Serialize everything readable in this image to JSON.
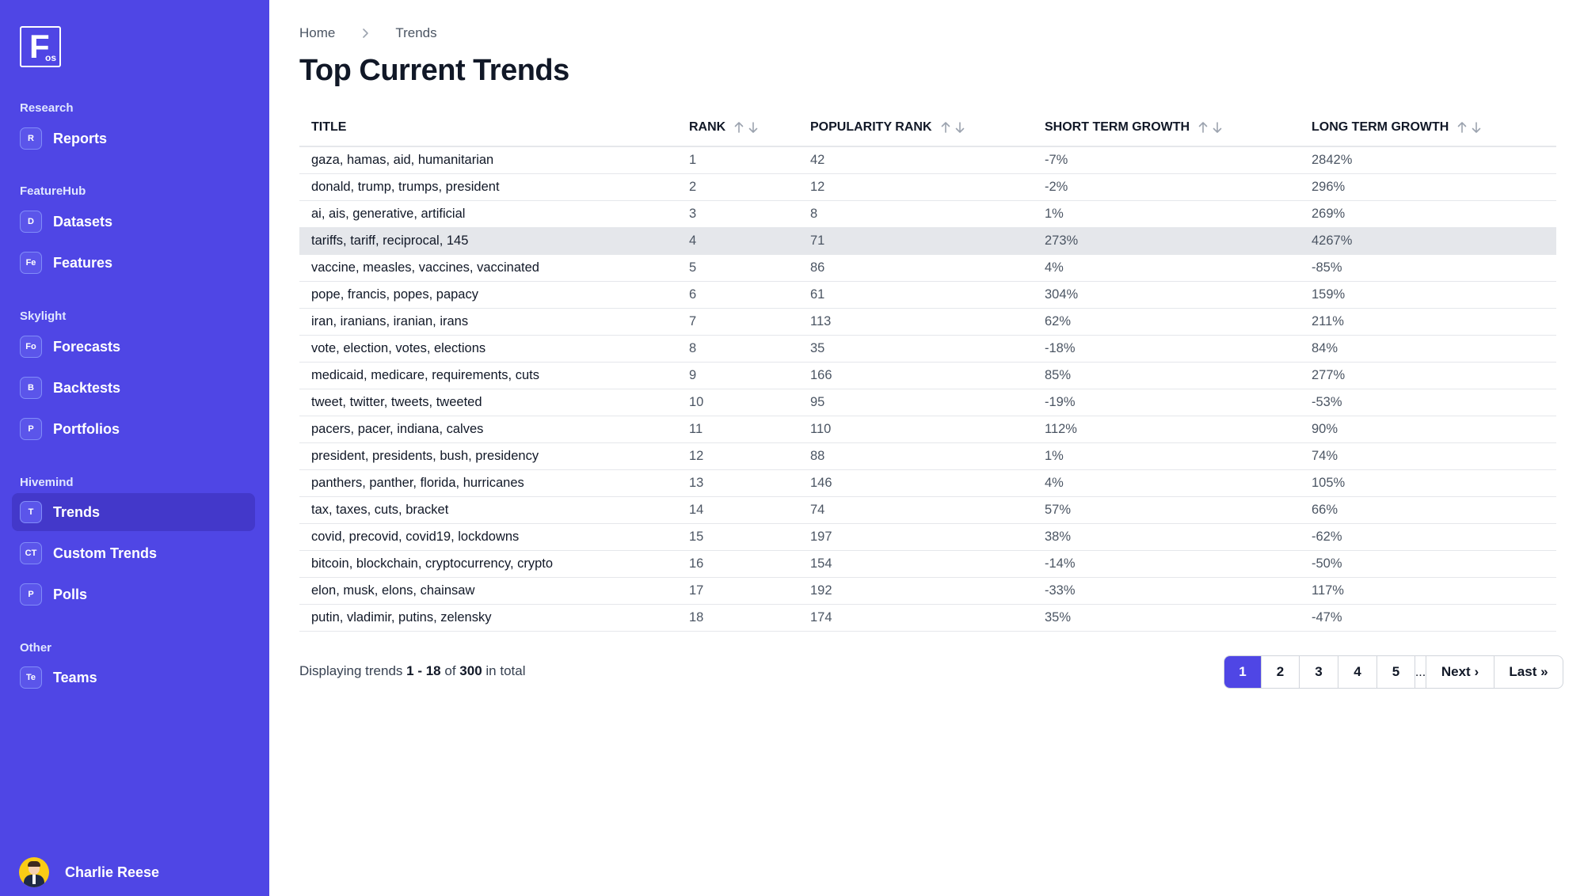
{
  "logo": {
    "letter": "F",
    "sub": "os"
  },
  "sidebar": {
    "sections": [
      {
        "title": "Research",
        "items": [
          {
            "badge": "R",
            "label": "Reports"
          }
        ]
      },
      {
        "title": "FeatureHub",
        "items": [
          {
            "badge": "D",
            "label": "Datasets"
          },
          {
            "badge": "Fe",
            "label": "Features"
          }
        ]
      },
      {
        "title": "Skylight",
        "items": [
          {
            "badge": "Fo",
            "label": "Forecasts"
          },
          {
            "badge": "B",
            "label": "Backtests"
          },
          {
            "badge": "P",
            "label": "Portfolios"
          }
        ]
      },
      {
        "title": "Hivemind",
        "items": [
          {
            "badge": "T",
            "label": "Trends",
            "active": true
          },
          {
            "badge": "CT",
            "label": "Custom Trends"
          },
          {
            "badge": "P",
            "label": "Polls"
          }
        ]
      },
      {
        "title": "Other",
        "items": [
          {
            "badge": "Te",
            "label": "Teams"
          }
        ]
      }
    ],
    "user": {
      "name": "Charlie Reese"
    }
  },
  "breadcrumb": [
    "Home",
    "Trends"
  ],
  "page": {
    "title": "Top Current Trends"
  },
  "table": {
    "columns": [
      "TITLE",
      "RANK",
      "POPULARITY RANK",
      "SHORT TERM GROWTH",
      "LONG TERM GROWTH"
    ],
    "rows": [
      [
        "gaza, hamas, aid, humanitarian",
        "1",
        "42",
        "-7%",
        "2842%"
      ],
      [
        "donald, trump, trumps, president",
        "2",
        "12",
        "-2%",
        "296%"
      ],
      [
        "ai, ais, generative, artificial",
        "3",
        "8",
        "1%",
        "269%"
      ],
      [
        "tariffs, tariff, reciprocal, 145",
        "4",
        "71",
        "273%",
        "4267%"
      ],
      [
        "vaccine, measles, vaccines, vaccinated",
        "5",
        "86",
        "4%",
        "-85%"
      ],
      [
        "pope, francis, popes, papacy",
        "6",
        "61",
        "304%",
        "159%"
      ],
      [
        "iran, iranians, iranian, irans",
        "7",
        "113",
        "62%",
        "211%"
      ],
      [
        "vote, election, votes, elections",
        "8",
        "35",
        "-18%",
        "84%"
      ],
      [
        "medicaid, medicare, requirements, cuts",
        "9",
        "166",
        "85%",
        "277%"
      ],
      [
        "tweet, twitter, tweets, tweeted",
        "10",
        "95",
        "-19%",
        "-53%"
      ],
      [
        "pacers, pacer, indiana, calves",
        "11",
        "110",
        "112%",
        "90%"
      ],
      [
        "president, presidents, bush, presidency",
        "12",
        "88",
        "1%",
        "74%"
      ],
      [
        "panthers, panther, florida, hurricanes",
        "13",
        "146",
        "4%",
        "105%"
      ],
      [
        "tax, taxes, cuts, bracket",
        "14",
        "74",
        "57%",
        "66%"
      ],
      [
        "covid, precovid, covid19, lockdowns",
        "15",
        "197",
        "38%",
        "-62%"
      ],
      [
        "bitcoin, blockchain, cryptocurrency, crypto",
        "16",
        "154",
        "-14%",
        "-50%"
      ],
      [
        "elon, musk, elons, chainsaw",
        "17",
        "192",
        "-33%",
        "117%"
      ],
      [
        "putin, vladimir, putins, zelensky",
        "18",
        "174",
        "35%",
        "-47%"
      ]
    ],
    "highlighted_row": 3
  },
  "footer": {
    "prefix": "Displaying trends",
    "range": "1 - 18",
    "of": "of",
    "total": "300",
    "suffix": "in total"
  },
  "pagination": {
    "pages": [
      "1",
      "2",
      "3",
      "4",
      "5"
    ],
    "current": "1",
    "ellipsis": "...",
    "next": "Next ›",
    "last": "Last »"
  },
  "colors": {
    "accent": "#4f46e5",
    "active_nav": "#4338ca",
    "highlight_row": "#e5e7eb"
  }
}
